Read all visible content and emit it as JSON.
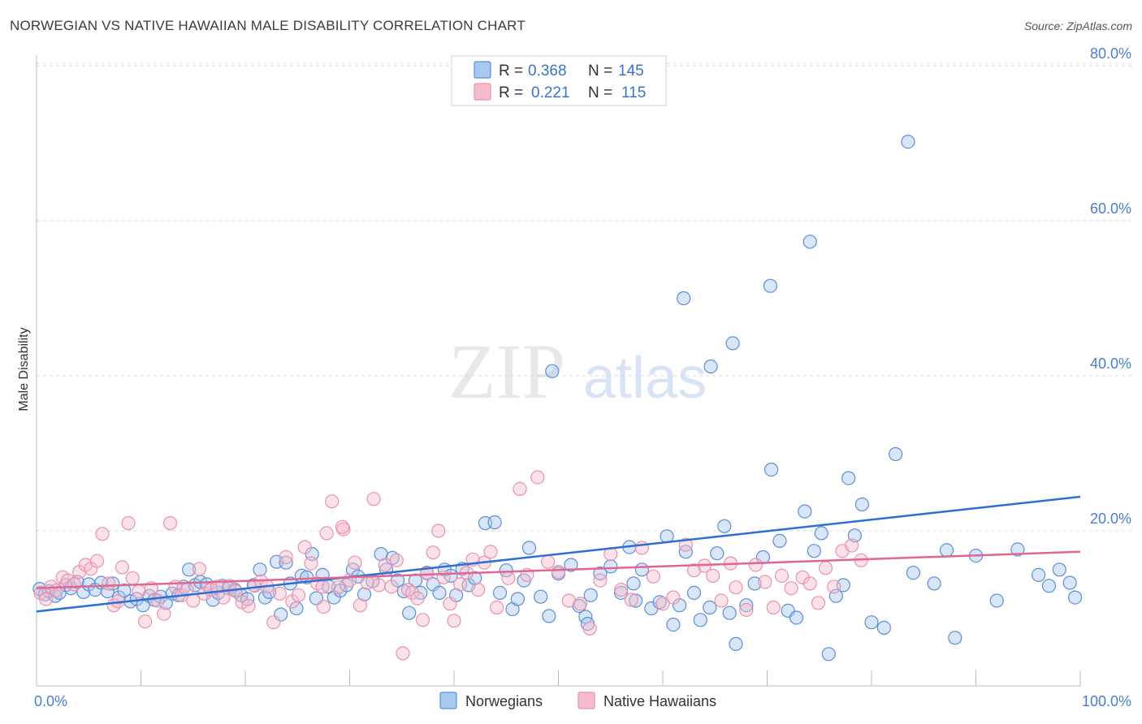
{
  "title": "NORWEGIAN VS NATIVE HAWAIIAN MALE DISABILITY CORRELATION CHART",
  "source": "Source: ZipAtlas.com",
  "watermark": {
    "zip": "ZIP",
    "atlas": "atlas"
  },
  "colors": {
    "norwegians_fill": "#a9c8f0",
    "norwegians_stroke": "#5b8fd6",
    "norwegians_line": "#2e6fd4",
    "hawaiians_fill": "#f6bccd",
    "hawaiians_stroke": "#e893ad",
    "hawaiians_line": "#e0678f",
    "grid": "#d9d9d9",
    "tick_label": "#4a7fd0"
  },
  "legend": {
    "r_label": "R =",
    "n_label": "N =",
    "norwegians": {
      "r": "0.368",
      "n": "145"
    },
    "hawaiians": {
      "r": "0.221",
      "n": "115"
    }
  },
  "chart_data": {
    "type": "scatter",
    "title": "NORWEGIAN VS NATIVE HAWAIIAN MALE DISABILITY CORRELATION CHART",
    "xlabel": "",
    "ylabel": "Male Disability",
    "xlim": [
      0,
      100
    ],
    "ylim": [
      0,
      84
    ],
    "x_tick_labels": {
      "min": "0.0%",
      "max": "100.0%"
    },
    "y_ticks": [
      20,
      40,
      60,
      80
    ],
    "y_tick_labels": [
      "20.0%",
      "40.0%",
      "60.0%",
      "80.0%"
    ],
    "legend_position": "bottom-center",
    "series": [
      {
        "name": "Norwegians",
        "r": 0.368,
        "n": 145,
        "trend": {
          "x": [
            0,
            100
          ],
          "y": [
            9.6,
            24.4
          ]
        },
        "points": [
          [
            0.3,
            12.5
          ],
          [
            0.8,
            11.8
          ],
          [
            1.2,
            12.2
          ],
          [
            1.8,
            11.6
          ],
          [
            2.2,
            12.0
          ],
          [
            2.8,
            13.0
          ],
          [
            3.3,
            12.6
          ],
          [
            3.9,
            13.4
          ],
          [
            4.5,
            12.1
          ],
          [
            5.0,
            13.1
          ],
          [
            5.6,
            12.4
          ],
          [
            6.2,
            13.3
          ],
          [
            6.8,
            12.2
          ],
          [
            7.3,
            13.2
          ],
          [
            7.9,
            11.4
          ],
          [
            8.4,
            12.3
          ],
          [
            9.0,
            10.9
          ],
          [
            9.6,
            11.2
          ],
          [
            10.2,
            10.4
          ],
          [
            10.8,
            11.6
          ],
          [
            11.3,
            11.1
          ],
          [
            11.9,
            11.5
          ],
          [
            12.4,
            10.7
          ],
          [
            13.0,
            11.9
          ],
          [
            13.6,
            11.7
          ],
          [
            14.1,
            12.8
          ],
          [
            14.6,
            15.0
          ],
          [
            15.2,
            13.0
          ],
          [
            15.7,
            13.4
          ],
          [
            16.3,
            13.1
          ],
          [
            16.9,
            11.1
          ],
          [
            17.4,
            12.0
          ],
          [
            17.8,
            12.9
          ],
          [
            18.4,
            12.6
          ],
          [
            19.0,
            12.4
          ],
          [
            19.6,
            11.7
          ],
          [
            20.2,
            11.2
          ],
          [
            20.8,
            13.0
          ],
          [
            21.4,
            15.0
          ],
          [
            21.9,
            11.4
          ],
          [
            22.3,
            12.1
          ],
          [
            23.0,
            16.0
          ],
          [
            23.4,
            9.2
          ],
          [
            23.9,
            15.9
          ],
          [
            24.3,
            13.2
          ],
          [
            24.9,
            10.0
          ],
          [
            25.4,
            14.2
          ],
          [
            25.9,
            14.0
          ],
          [
            26.4,
            17.0
          ],
          [
            26.8,
            11.3
          ],
          [
            27.4,
            14.3
          ],
          [
            28.0,
            12.8
          ],
          [
            28.5,
            11.4
          ],
          [
            29.1,
            12.3
          ],
          [
            29.7,
            13.0
          ],
          [
            30.3,
            15.0
          ],
          [
            30.8,
            14.1
          ],
          [
            31.4,
            11.8
          ],
          [
            32.2,
            13.5
          ],
          [
            33.0,
            17.0
          ],
          [
            33.5,
            15.0
          ],
          [
            34.1,
            16.5
          ],
          [
            34.6,
            13.6
          ],
          [
            35.2,
            12.2
          ],
          [
            35.7,
            9.4
          ],
          [
            36.3,
            13.6
          ],
          [
            36.8,
            12.0
          ],
          [
            37.4,
            14.6
          ],
          [
            38.0,
            13.1
          ],
          [
            38.6,
            12.0
          ],
          [
            39.1,
            15.0
          ],
          [
            39.7,
            14.2
          ],
          [
            40.2,
            11.7
          ],
          [
            40.8,
            15.1
          ],
          [
            41.4,
            13.0
          ],
          [
            42.0,
            13.9
          ],
          [
            43.0,
            21.0
          ],
          [
            43.9,
            21.1
          ],
          [
            44.4,
            12.0
          ],
          [
            45.0,
            14.9
          ],
          [
            45.6,
            9.9
          ],
          [
            46.1,
            11.2
          ],
          [
            46.7,
            13.6
          ],
          [
            47.2,
            17.8
          ],
          [
            48.3,
            11.5
          ],
          [
            49.1,
            9.0
          ],
          [
            50.0,
            14.5
          ],
          [
            51.2,
            15.6
          ],
          [
            52.0,
            10.3
          ],
          [
            52.6,
            8.9
          ],
          [
            53.1,
            11.7
          ],
          [
            54.0,
            14.5
          ],
          [
            55.0,
            15.4
          ],
          [
            56.0,
            12.0
          ],
          [
            56.8,
            17.9
          ],
          [
            57.4,
            11.0
          ],
          [
            58.0,
            15.0
          ],
          [
            58.9,
            10.0
          ],
          [
            59.7,
            10.8
          ],
          [
            60.4,
            19.3
          ],
          [
            61.0,
            7.9
          ],
          [
            61.6,
            10.4
          ],
          [
            62.2,
            17.3
          ],
          [
            63.0,
            12.0
          ],
          [
            63.6,
            8.5
          ],
          [
            64.5,
            10.1
          ],
          [
            65.2,
            17.1
          ],
          [
            65.9,
            20.6
          ],
          [
            66.4,
            9.4
          ],
          [
            67.0,
            5.4
          ],
          [
            68.0,
            10.4
          ],
          [
            68.8,
            13.2
          ],
          [
            69.6,
            16.6
          ],
          [
            70.4,
            27.9
          ],
          [
            71.2,
            18.7
          ],
          [
            72.0,
            9.7
          ],
          [
            72.8,
            8.8
          ],
          [
            73.6,
            22.5
          ],
          [
            74.5,
            17.4
          ],
          [
            75.2,
            19.7
          ],
          [
            75.9,
            4.1
          ],
          [
            76.6,
            11.6
          ],
          [
            77.3,
            13.0
          ],
          [
            77.8,
            26.8
          ],
          [
            78.4,
            19.4
          ],
          [
            79.1,
            23.4
          ],
          [
            80.0,
            8.2
          ],
          [
            81.2,
            7.5
          ],
          [
            82.3,
            29.9
          ],
          [
            84.0,
            14.6
          ],
          [
            86.0,
            13.2
          ],
          [
            88.0,
            6.2
          ],
          [
            90.0,
            16.8
          ],
          [
            92.0,
            11.0
          ],
          [
            94.0,
            17.6
          ],
          [
            96.0,
            14.3
          ],
          [
            97.0,
            12.9
          ],
          [
            98.0,
            15.0
          ],
          [
            99.0,
            13.3
          ],
          [
            99.5,
            11.4
          ],
          [
            49.4,
            40.6
          ],
          [
            62.0,
            50.0
          ],
          [
            64.6,
            41.2
          ],
          [
            66.7,
            44.2
          ],
          [
            70.3,
            51.6
          ],
          [
            74.1,
            57.3
          ],
          [
            83.5,
            70.2
          ],
          [
            52.8,
            8.0
          ],
          [
            57.2,
            13.2
          ],
          [
            87.2,
            17.5
          ]
        ]
      },
      {
        "name": "Native Hawaiians",
        "r": 0.221,
        "n": 115,
        "trend": {
          "x": [
            0,
            100
          ],
          "y": [
            12.6,
            17.3
          ]
        },
        "points": [
          [
            0.4,
            12.0
          ],
          [
            0.9,
            11.2
          ],
          [
            1.4,
            12.8
          ],
          [
            1.9,
            12.3
          ],
          [
            2.5,
            14.0
          ],
          [
            3.0,
            13.6
          ],
          [
            3.6,
            13.1
          ],
          [
            4.1,
            14.7
          ],
          [
            4.7,
            15.6
          ],
          [
            5.2,
            15.1
          ],
          [
            5.8,
            16.1
          ],
          [
            6.3,
            19.6
          ],
          [
            6.9,
            13.2
          ],
          [
            7.4,
            10.4
          ],
          [
            7.8,
            10.9
          ],
          [
            8.2,
            15.3
          ],
          [
            8.8,
            21.0
          ],
          [
            9.2,
            13.9
          ],
          [
            9.8,
            12.2
          ],
          [
            10.4,
            8.3
          ],
          [
            11.0,
            12.6
          ],
          [
            11.6,
            11.0
          ],
          [
            12.2,
            9.3
          ],
          [
            12.8,
            21.0
          ],
          [
            13.3,
            12.8
          ],
          [
            13.9,
            11.7
          ],
          [
            14.4,
            12.4
          ],
          [
            15.0,
            11.0
          ],
          [
            15.6,
            15.1
          ],
          [
            16.1,
            11.9
          ],
          [
            16.7,
            12.4
          ],
          [
            17.3,
            12.8
          ],
          [
            17.9,
            11.4
          ],
          [
            18.5,
            12.9
          ],
          [
            19.1,
            12.2
          ],
          [
            19.7,
            10.8
          ],
          [
            20.3,
            10.3
          ],
          [
            20.9,
            12.9
          ],
          [
            21.5,
            13.5
          ],
          [
            22.1,
            12.8
          ],
          [
            22.7,
            8.2
          ],
          [
            23.3,
            11.9
          ],
          [
            23.9,
            16.6
          ],
          [
            24.5,
            10.9
          ],
          [
            25.1,
            11.7
          ],
          [
            25.7,
            17.9
          ],
          [
            26.3,
            15.8
          ],
          [
            26.9,
            13.2
          ],
          [
            27.5,
            10.2
          ],
          [
            27.8,
            19.7
          ],
          [
            28.3,
            23.8
          ],
          [
            28.9,
            12.7
          ],
          [
            29.4,
            20.2
          ],
          [
            30.0,
            13.6
          ],
          [
            30.5,
            15.9
          ],
          [
            31.0,
            10.4
          ],
          [
            31.7,
            13.3
          ],
          [
            32.3,
            24.1
          ],
          [
            32.8,
            13.0
          ],
          [
            33.4,
            15.6
          ],
          [
            34.0,
            12.8
          ],
          [
            34.5,
            16.2
          ],
          [
            35.1,
            4.2
          ],
          [
            35.6,
            12.4
          ],
          [
            36.0,
            12.0
          ],
          [
            36.5,
            11.3
          ],
          [
            37.0,
            8.5
          ],
          [
            37.4,
            14.5
          ],
          [
            38.0,
            17.2
          ],
          [
            38.5,
            20.0
          ],
          [
            39.0,
            14.0
          ],
          [
            39.6,
            10.6
          ],
          [
            40.0,
            8.4
          ],
          [
            40.6,
            13.1
          ],
          [
            41.2,
            14.6
          ],
          [
            41.8,
            16.3
          ],
          [
            42.3,
            12.4
          ],
          [
            42.9,
            15.9
          ],
          [
            43.5,
            17.3
          ],
          [
            44.1,
            10.1
          ],
          [
            45.2,
            13.9
          ],
          [
            46.3,
            25.4
          ],
          [
            47.0,
            14.3
          ],
          [
            48.0,
            26.9
          ],
          [
            49.0,
            16.0
          ],
          [
            50.0,
            14.7
          ],
          [
            51.0,
            11.0
          ],
          [
            52.1,
            10.6
          ],
          [
            53.0,
            7.4
          ],
          [
            54.0,
            13.6
          ],
          [
            55.0,
            17.0
          ],
          [
            56.0,
            12.4
          ],
          [
            57.0,
            11.1
          ],
          [
            58.0,
            17.8
          ],
          [
            59.1,
            14.1
          ],
          [
            60.0,
            10.6
          ],
          [
            61.0,
            11.4
          ],
          [
            62.2,
            18.2
          ],
          [
            63.0,
            14.9
          ],
          [
            64.0,
            15.5
          ],
          [
            64.8,
            14.2
          ],
          [
            65.6,
            11.0
          ],
          [
            66.5,
            15.8
          ],
          [
            67.0,
            12.7
          ],
          [
            68.0,
            9.8
          ],
          [
            68.9,
            15.6
          ],
          [
            69.8,
            13.4
          ],
          [
            70.6,
            10.1
          ],
          [
            71.4,
            14.2
          ],
          [
            72.3,
            12.6
          ],
          [
            73.4,
            14.0
          ],
          [
            74.1,
            13.2
          ],
          [
            74.9,
            10.7
          ],
          [
            75.6,
            15.2
          ],
          [
            76.4,
            12.8
          ],
          [
            77.2,
            17.4
          ],
          [
            78.1,
            18.1
          ],
          [
            29.3,
            20.5
          ],
          [
            27.4,
            12.8
          ],
          [
            79.0,
            16.2
          ]
        ]
      }
    ]
  },
  "bottom_legend": {
    "norwegians": "Norwegians",
    "hawaiians": "Native Hawaiians"
  }
}
